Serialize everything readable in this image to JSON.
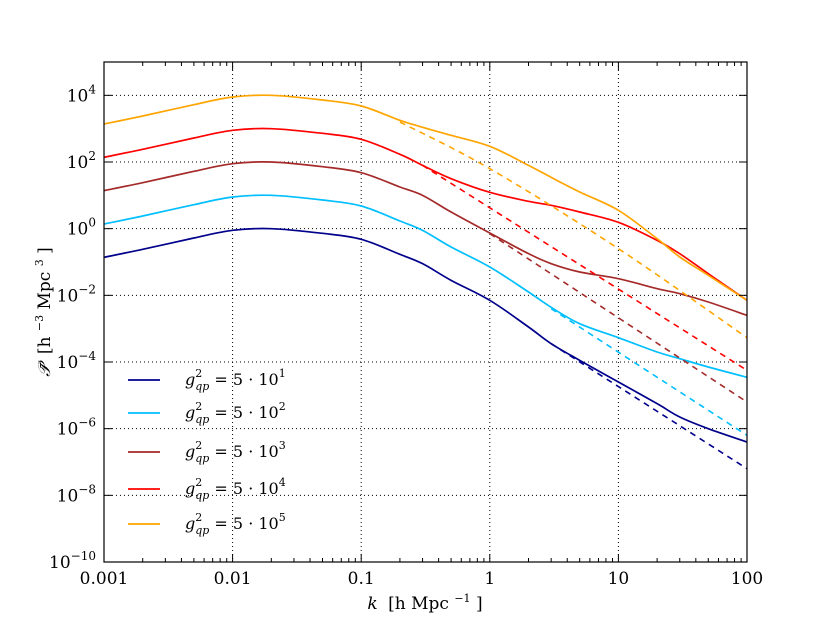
{
  "chart_data": {
    "type": "line",
    "xlabel": {
      "var": "k",
      "unit": "[h Mpc",
      "unit_exp": "−1",
      "close": "]"
    },
    "ylabel": {
      "var": "𝒫̄",
      "unit": "[h",
      "unit_exp1": "−3",
      "unit_mid": " Mpc",
      "unit_exp2": "3",
      "close": "]"
    },
    "xscale": "log",
    "yscale": "log",
    "xlim": [
      0.001,
      100
    ],
    "ylim": [
      1e-10,
      100000.0
    ],
    "grid": true,
    "legend_position": "lower-left",
    "xticks": [
      0.001,
      0.01,
      0.1,
      1,
      10,
      100
    ],
    "xtick_labels": [
      "0.001",
      "0.01",
      "0.1",
      "1",
      "10",
      "100"
    ],
    "yticks": [
      1e-10,
      1e-08,
      1e-06,
      0.0001,
      0.01,
      1,
      100.0,
      10000.0
    ],
    "ytick_labels": [
      {
        "base": "10",
        "exp": "−10"
      },
      {
        "base": "10",
        "exp": "−8"
      },
      {
        "base": "10",
        "exp": "−6"
      },
      {
        "base": "10",
        "exp": "−4"
      },
      {
        "base": "10",
        "exp": "−2"
      },
      {
        "base": "10",
        "exp": "0"
      },
      {
        "base": "10",
        "exp": "2"
      },
      {
        "base": "10",
        "exp": "4"
      }
    ],
    "series": [
      {
        "name": {
          "g": "g",
          "sup": "2",
          "sub": "qp",
          "rhs": " = 5 · 10",
          "exp": "1"
        },
        "color": "#00008b",
        "x": [
          0.001,
          0.002,
          0.005,
          0.01,
          0.02,
          0.05,
          0.1,
          0.2,
          0.3,
          0.5,
          1,
          2,
          3,
          5,
          10,
          20,
          30,
          50,
          100
        ],
        "y_log10": [
          -0.86,
          -0.62,
          -0.28,
          -0.05,
          0.0,
          -0.14,
          -0.32,
          -0.77,
          -1.05,
          -1.55,
          -2.15,
          -2.95,
          -3.45,
          -3.95,
          -4.6,
          -5.25,
          -5.65,
          -6.0,
          -6.4
        ],
        "dashed": {
          "x": [
            3,
            100
          ],
          "y_log10": [
            -3.45,
            -7.2
          ]
        }
      },
      {
        "name": {
          "g": "g",
          "sup": "2",
          "sub": "qp",
          "rhs": " = 5 · 10",
          "exp": "2"
        },
        "color": "#00bfff",
        "x": [
          0.001,
          0.002,
          0.005,
          0.01,
          0.02,
          0.05,
          0.1,
          0.2,
          0.3,
          0.5,
          1,
          2,
          3,
          5,
          10,
          20,
          30,
          50,
          100
        ],
        "y_log10": [
          0.14,
          0.38,
          0.72,
          0.95,
          1.0,
          0.86,
          0.68,
          0.23,
          -0.05,
          -0.55,
          -1.15,
          -1.9,
          -2.36,
          -2.85,
          -3.27,
          -3.7,
          -3.9,
          -4.15,
          -4.46
        ],
        "dashed": {
          "x": [
            3,
            100
          ],
          "y_log10": [
            -2.4,
            -6.2
          ]
        }
      },
      {
        "name": {
          "g": "g",
          "sup": "2",
          "sub": "qp",
          "rhs": " = 5 · 10",
          "exp": "3"
        },
        "color": "#a52a2a",
        "x": [
          0.001,
          0.002,
          0.005,
          0.01,
          0.02,
          0.05,
          0.1,
          0.2,
          0.3,
          0.5,
          1,
          2,
          3,
          5,
          10,
          20,
          30,
          50,
          100
        ],
        "y_log10": [
          1.14,
          1.38,
          1.72,
          1.95,
          2.0,
          1.86,
          1.68,
          1.25,
          1.0,
          0.5,
          -0.13,
          -0.75,
          -1.05,
          -1.3,
          -1.5,
          -1.8,
          -1.95,
          -2.2,
          -2.6
        ],
        "dashed": {
          "x": [
            1,
            100
          ],
          "y_log10": [
            -0.15,
            -5.2
          ]
        }
      },
      {
        "name": {
          "g": "g",
          "sup": "2",
          "sub": "qp",
          "rhs": " = 5 · 10",
          "exp": "4"
        },
        "color": "#ff0000",
        "x": [
          0.001,
          0.002,
          0.005,
          0.01,
          0.02,
          0.05,
          0.1,
          0.2,
          0.3,
          0.5,
          1,
          2,
          3,
          5,
          10,
          20,
          30,
          50,
          100
        ],
        "y_log10": [
          2.14,
          2.38,
          2.72,
          2.95,
          3.0,
          2.86,
          2.68,
          2.23,
          1.9,
          1.5,
          1.09,
          0.82,
          0.7,
          0.5,
          0.19,
          -0.35,
          -0.75,
          -1.35,
          -2.15
        ],
        "dashed": {
          "x": [
            0.3,
            100
          ],
          "y_log10": [
            1.9,
            -4.25
          ]
        }
      },
      {
        "name": {
          "g": "g",
          "sup": "2",
          "sub": "qp",
          "rhs": " = 5 · 10",
          "exp": "5"
        },
        "color": "#ffa500",
        "x": [
          0.001,
          0.002,
          0.005,
          0.01,
          0.02,
          0.05,
          0.1,
          0.2,
          0.3,
          0.5,
          1,
          2,
          3,
          5,
          10,
          20,
          30,
          50,
          100
        ],
        "y_log10": [
          3.14,
          3.38,
          3.72,
          3.95,
          4.0,
          3.86,
          3.68,
          3.25,
          3.04,
          2.8,
          2.47,
          1.9,
          1.54,
          1.1,
          0.55,
          -0.3,
          -0.85,
          -1.4,
          -2.15
        ],
        "dashed": {
          "x": [
            0.2,
            1,
            10,
            100
          ],
          "y_log10": [
            3.2,
            1.8,
            -0.6,
            -3.27
          ]
        }
      }
    ]
  }
}
